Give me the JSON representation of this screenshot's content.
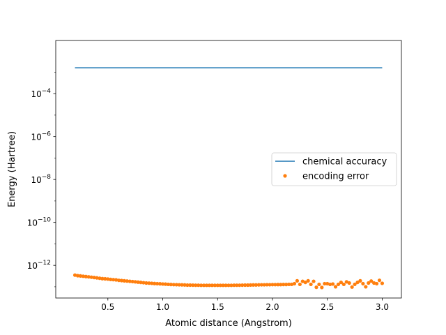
{
  "chart_data": {
    "type": "line",
    "title": "",
    "xlabel": "Atomic distance (Angstrom)",
    "ylabel": "Energy (Hartree)",
    "xlim": [
      0.025,
      3.175
    ],
    "ylim": [
      3e-14,
      0.03
    ],
    "yscale": "log",
    "x_ticks": [
      0.5,
      1.0,
      1.5,
      2.0,
      2.5,
      3.0
    ],
    "x_tick_labels": [
      "0.5",
      "1.0",
      "1.5",
      "2.0",
      "2.5",
      "3.0"
    ],
    "y_ticks": [
      {
        "value": 0.0001,
        "base": "10",
        "exp": "−4"
      },
      {
        "value": 1e-06,
        "base": "10",
        "exp": "−6"
      },
      {
        "value": 1e-08,
        "base": "10",
        "exp": "−8"
      },
      {
        "value": 1e-10,
        "base": "10",
        "exp": "−10"
      },
      {
        "value": 1e-12,
        "base": "10",
        "exp": "−12"
      }
    ],
    "grid": false,
    "legend": {
      "position": "center-right"
    },
    "series": [
      {
        "name": "chemical accuracy",
        "kind": "line",
        "color": "#1f77b4",
        "x": [
          0.2,
          3.0
        ],
        "y": [
          0.0016,
          0.0016
        ]
      },
      {
        "name": "encoding error",
        "kind": "scatter",
        "color": "#ff7f0e",
        "x": [
          0.2,
          0.225,
          0.25,
          0.275,
          0.3,
          0.325,
          0.35,
          0.375,
          0.4,
          0.425,
          0.45,
          0.475,
          0.5,
          0.525,
          0.55,
          0.575,
          0.6,
          0.625,
          0.65,
          0.675,
          0.7,
          0.725,
          0.75,
          0.775,
          0.8,
          0.825,
          0.85,
          0.875,
          0.9,
          0.925,
          0.95,
          0.975,
          1.0,
          1.025,
          1.05,
          1.075,
          1.1,
          1.125,
          1.15,
          1.175,
          1.2,
          1.225,
          1.25,
          1.275,
          1.3,
          1.325,
          1.35,
          1.375,
          1.4,
          1.425,
          1.45,
          1.475,
          1.5,
          1.525,
          1.55,
          1.575,
          1.6,
          1.625,
          1.65,
          1.675,
          1.7,
          1.725,
          1.75,
          1.775,
          1.8,
          1.825,
          1.85,
          1.875,
          1.9,
          1.925,
          1.95,
          1.975,
          2.0,
          2.025,
          2.05,
          2.075,
          2.1,
          2.125,
          2.15,
          2.175,
          2.2,
          2.225,
          2.25,
          2.275,
          2.3,
          2.325,
          2.35,
          2.375,
          2.4,
          2.425,
          2.45,
          2.475,
          2.5,
          2.525,
          2.55,
          2.575,
          2.6,
          2.625,
          2.65,
          2.675,
          2.7,
          2.725,
          2.75,
          2.775,
          2.8,
          2.825,
          2.85,
          2.875,
          2.9,
          2.925,
          2.95,
          2.975,
          3.0
        ],
        "y": [
          3.5e-13,
          3.3e-13,
          3.2e-13,
          3.1e-13,
          3e-13,
          2.9e-13,
          2.8e-13,
          2.7e-13,
          2.6e-13,
          2.5e-13,
          2.4e-13,
          2.35e-13,
          2.3e-13,
          2.2e-13,
          2.15e-13,
          2.1e-13,
          2e-13,
          1.95e-13,
          1.9e-13,
          1.85e-13,
          1.8e-13,
          1.75e-13,
          1.7e-13,
          1.65e-13,
          1.6e-13,
          1.55e-13,
          1.5e-13,
          1.48e-13,
          1.45e-13,
          1.42e-13,
          1.4e-13,
          1.38e-13,
          1.35e-13,
          1.33e-13,
          1.3e-13,
          1.28e-13,
          1.26e-13,
          1.25e-13,
          1.24e-13,
          1.23e-13,
          1.22e-13,
          1.2e-13,
          1.2e-13,
          1.19e-13,
          1.18e-13,
          1.18e-13,
          1.17e-13,
          1.17e-13,
          1.17e-13,
          1.17e-13,
          1.17e-13,
          1.17e-13,
          1.17e-13,
          1.17e-13,
          1.17e-13,
          1.17e-13,
          1.17e-13,
          1.17e-13,
          1.18e-13,
          1.18e-13,
          1.18e-13,
          1.19e-13,
          1.2e-13,
          1.2e-13,
          1.21e-13,
          1.22e-13,
          1.22e-13,
          1.23e-13,
          1.24e-13,
          1.24e-13,
          1.25e-13,
          1.25e-13,
          1.26e-13,
          1.26e-13,
          1.27e-13,
          1.27e-13,
          1.28e-13,
          1.28e-13,
          1.3e-13,
          1.3e-13,
          1.4e-13,
          1.9e-13,
          1.3e-13,
          1.8e-13,
          1.6e-13,
          1.9e-13,
          1.3e-13,
          1.8e-13,
          9.5e-14,
          1.3e-13,
          9.3e-14,
          1.4e-13,
          1.4e-13,
          1.3e-13,
          1.35e-13,
          1e-13,
          1.3e-13,
          1.6e-13,
          1.3e-13,
          1.7e-13,
          1.5e-13,
          9.7e-14,
          1.3e-13,
          1.6e-13,
          1.9e-13,
          1.4e-13,
          1e-13,
          1.5e-13,
          1.85e-13,
          1.5e-13,
          1.4e-13,
          2e-13,
          1.45e-13
        ]
      }
    ]
  }
}
